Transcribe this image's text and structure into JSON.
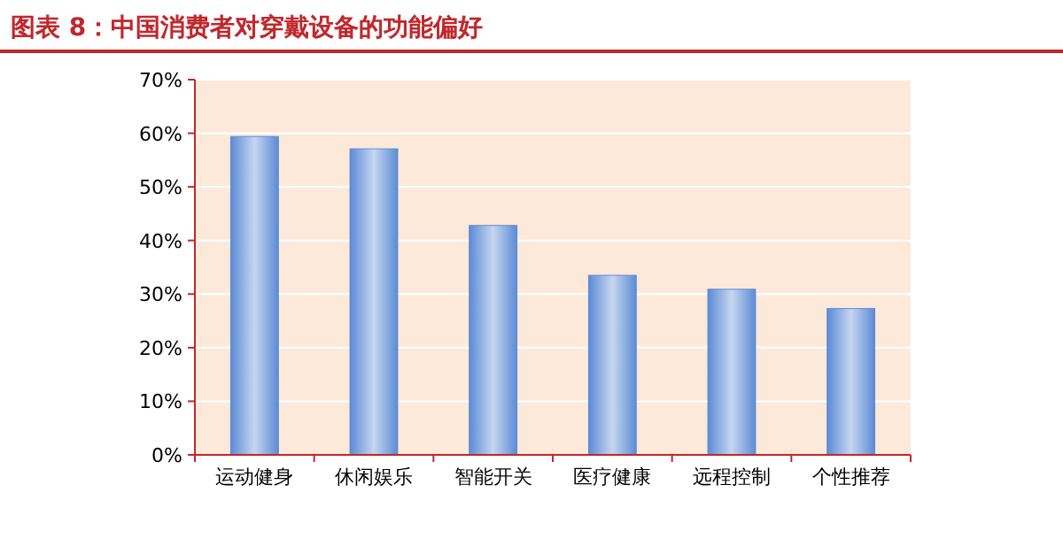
{
  "chart_data": {
    "type": "bar",
    "title": "图表 8：中国消费者对穿戴设备的功能偏好",
    "categories": [
      "运动健身",
      "休闲娱乐",
      "智能开关",
      "医疗健康",
      "远程控制",
      "个性推荐"
    ],
    "values": [
      59.4,
      57.1,
      42.8,
      33.5,
      30.9,
      27.3
    ],
    "color": "#5b8bd6",
    "ylim": [
      0,
      70
    ],
    "yticks": [
      {
        "value": 0,
        "label": "0%"
      },
      {
        "value": 10,
        "label": "10%"
      },
      {
        "value": 20,
        "label": "20%"
      },
      {
        "value": 30,
        "label": "30%"
      },
      {
        "value": 40,
        "label": "40%"
      },
      {
        "value": 50,
        "label": "50%"
      },
      {
        "value": 60,
        "label": "60%"
      },
      {
        "value": 70,
        "label": "70%"
      }
    ],
    "grid": "y"
  }
}
